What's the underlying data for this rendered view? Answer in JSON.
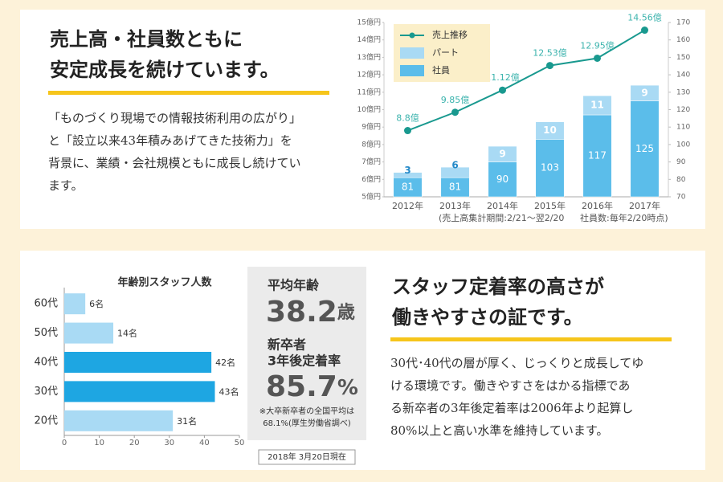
{
  "sections": [
    {
      "heading": [
        "売上高・社員数ともに",
        "安定成長を続けています。"
      ],
      "paragraph": [
        "「ものづくり現場での情報技術利用の広がり」",
        "と「設立以来43年積みあげてきた技術力」を",
        "背景に、業績・会社規模ともに成長し続けてい",
        "ます。"
      ]
    },
    {
      "heading": [
        "スタッフ定着率の高さが",
        "働きやすさの証です。"
      ],
      "paragraph": [
        "30代･40代の層が厚く、じっくりと成長してゆ",
        "ける環境です。働きやすさをはかる指標であ",
        "る新卒者の3年後定着率は2006年より起算し",
        "80%以上と高い水準を維持しています。"
      ]
    }
  ],
  "stats": {
    "average_age": {
      "label": "平均年齢",
      "value": "38.2",
      "unit": "歳"
    },
    "retention": {
      "label": [
        "新卒者",
        "3年後定着率"
      ],
      "value": "85.7",
      "unit": "%"
    },
    "note": [
      "※大卒新卒者の全国平均は",
      "68.1%(厚生労働省調べ)"
    ],
    "date": "2018年 3月20日現在"
  },
  "chart_data": [
    {
      "type": "bar_line",
      "categories": [
        "2012年",
        "2013年",
        "2014年",
        "2015年",
        "2016年",
        "2017年"
      ],
      "series": [
        {
          "name": "社員",
          "type": "bar",
          "axis": "y2",
          "color": "#5bbdea",
          "values": [
            81,
            81,
            90,
            103,
            117,
            125
          ]
        },
        {
          "name": "パート",
          "type": "bar",
          "axis": "y2",
          "color": "#a9daf4",
          "values": [
            3,
            6,
            9,
            10,
            11,
            9
          ]
        },
        {
          "name": "売上推移",
          "type": "line",
          "color": "#19998f",
          "values": [
            8.8,
            9.85,
            11.12,
            12.53,
            12.95,
            14.56
          ],
          "value_labels": [
            "8.8億",
            "9.85億",
            "11.12億",
            "12.53億",
            "12.95億",
            "14.56億"
          ]
        }
      ],
      "ylim": [
        5,
        15
      ],
      "yticks": [
        {
          "value": 5,
          "label": "5億円"
        },
        {
          "value": 6,
          "label": "6億円"
        },
        {
          "value": 7,
          "label": "7億円"
        },
        {
          "value": 8,
          "label": "8億円"
        },
        {
          "value": 9,
          "label": "9億円"
        },
        {
          "value": 10,
          "label": "10億円"
        },
        {
          "value": 11,
          "label": "11億円"
        },
        {
          "value": 12,
          "label": "12億円"
        },
        {
          "value": 13,
          "label": "13億円"
        },
        {
          "value": 14,
          "label": "14億円"
        },
        {
          "value": 15,
          "label": "15億円"
        }
      ],
      "y2lim": [
        70,
        170
      ],
      "y2ticks": [
        70,
        80,
        90,
        100,
        110,
        120,
        130,
        140,
        150,
        160,
        170
      ],
      "legend": "top-left",
      "annotations": [
        "(売上高集計期間:2/21〜翌2/20",
        "社員数:毎年2/20時点)"
      ]
    },
    {
      "type": "hbar",
      "title": "年齢別スタッフ人数",
      "categories": [
        "60代",
        "50代",
        "40代",
        "30代",
        "20代"
      ],
      "values": [
        6,
        14,
        42,
        43,
        31
      ],
      "value_labels": [
        "6名",
        "14名",
        "42名",
        "43名",
        "31名"
      ],
      "colors": [
        "#a9daf4",
        "#a9daf4",
        "#1ea6e2",
        "#1ea6e2",
        "#a9daf4"
      ],
      "xlim": [
        0,
        50
      ],
      "xticks": [
        0,
        10,
        20,
        30,
        40,
        50
      ]
    }
  ]
}
